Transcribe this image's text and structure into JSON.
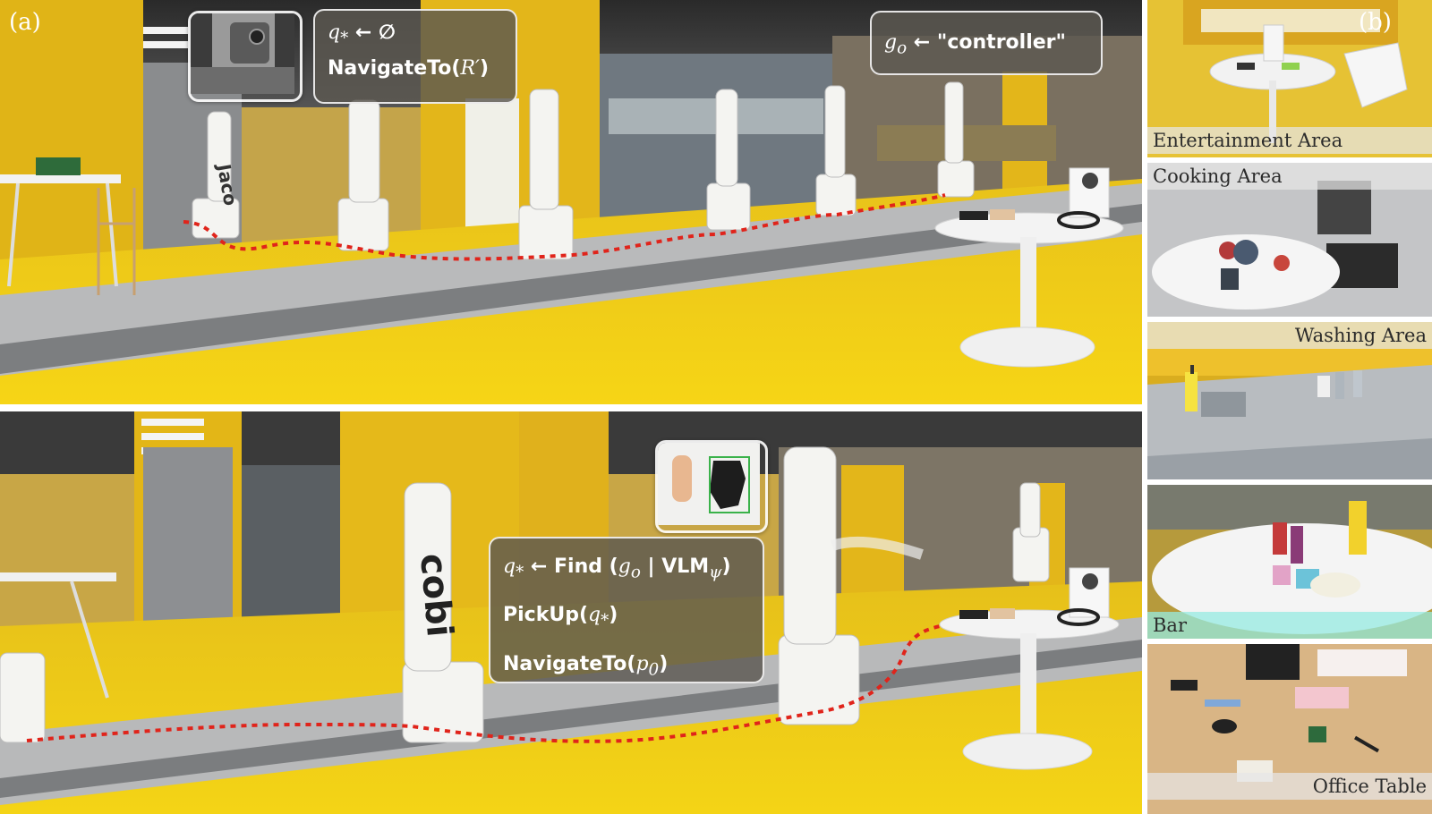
{
  "panel_labels": {
    "a": "(a)",
    "b": "(b)"
  },
  "top_panel": {
    "code_lines": [
      {
        "var": "q",
        "sub": "*",
        "rest": " ← ∅"
      },
      {
        "func": "NavigateTo",
        "arg": "R′"
      }
    ],
    "goal_line": {
      "var": "g",
      "sub": "o",
      "rest": " ← \"controller\""
    },
    "robot_body_text": "Jaco"
  },
  "bottom_panel": {
    "code_lines": [
      {
        "var": "q",
        "sub": "*",
        "rest": " ← Find ",
        "paren_open": "(",
        "g": "g",
        "g_sub": "o",
        "sep": " | ",
        "vlm": "VLM",
        "vlm_sub": "ψ",
        "paren_close": ")"
      },
      {
        "func": "PickUp",
        "arg_var": "q",
        "arg_sub": "*"
      },
      {
        "func": "NavigateTo",
        "arg_var": "p",
        "arg_sub": "0"
      }
    ],
    "robot_body_text": "cobi"
  },
  "areas": [
    {
      "label": "Entertainment Area"
    },
    {
      "label": "Cooking Area"
    },
    {
      "label": "Washing Area"
    },
    {
      "label": "Bar"
    },
    {
      "label": "Office Table"
    }
  ],
  "colors": {
    "floor_yellow": "#f2cf12",
    "wall_yellow": "#e6b81a",
    "walkway_gray": "#9a9c9d",
    "path_red": "#e0241b",
    "box_fill": "#5c5850"
  }
}
